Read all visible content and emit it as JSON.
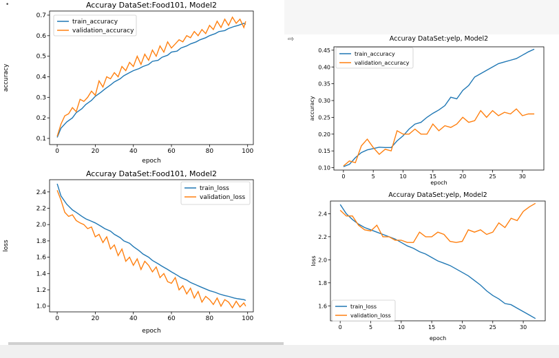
{
  "notebook": {
    "cell_marker": "•",
    "output_icon": "output-arrow-icon",
    "output_icon_glyph": "⇨"
  },
  "chart_data": [
    {
      "type": "line",
      "title": "Accuray DataSet:Food101, Model2",
      "xlabel": "epoch",
      "ylabel": "accuracy",
      "xlim": [
        -4,
        103
      ],
      "ylim": [
        0.07,
        0.72
      ],
      "xticks": [
        0,
        20,
        40,
        60,
        80,
        100
      ],
      "yticks": [
        0.1,
        0.2,
        0.3,
        0.4,
        0.5,
        0.6,
        0.7
      ],
      "ytick_labels": [
        "0.1",
        "0.2",
        "0.3",
        "0.4",
        "0.5",
        "0.6",
        "0.7"
      ],
      "legend_position": "top-left",
      "grid": false,
      "series": [
        {
          "name": "train_accuracy",
          "color": "#1f77b4",
          "x": [
            0,
            2,
            5,
            8,
            10,
            13,
            15,
            18,
            20,
            23,
            25,
            28,
            30,
            33,
            35,
            38,
            40,
            43,
            45,
            48,
            50,
            53,
            55,
            58,
            60,
            63,
            65,
            68,
            70,
            73,
            75,
            78,
            80,
            83,
            85,
            88,
            90,
            93,
            95,
            98,
            99
          ],
          "y": [
            0.105,
            0.15,
            0.18,
            0.2,
            0.225,
            0.245,
            0.265,
            0.285,
            0.305,
            0.325,
            0.34,
            0.36,
            0.375,
            0.39,
            0.405,
            0.42,
            0.43,
            0.44,
            0.45,
            0.46,
            0.475,
            0.48,
            0.495,
            0.505,
            0.52,
            0.525,
            0.54,
            0.55,
            0.56,
            0.57,
            0.58,
            0.59,
            0.6,
            0.61,
            0.62,
            0.625,
            0.635,
            0.645,
            0.65,
            0.66,
            0.655
          ]
        },
        {
          "name": "validation_accuracy",
          "color": "#ff7f0e",
          "x": [
            0,
            2,
            4,
            6,
            8,
            10,
            12,
            14,
            16,
            18,
            20,
            22,
            24,
            26,
            28,
            30,
            32,
            34,
            36,
            38,
            40,
            42,
            44,
            46,
            48,
            50,
            52,
            54,
            56,
            58,
            60,
            62,
            64,
            66,
            68,
            70,
            72,
            74,
            76,
            78,
            80,
            82,
            84,
            86,
            88,
            90,
            92,
            94,
            96,
            98,
            99
          ],
          "y": [
            0.11,
            0.17,
            0.21,
            0.22,
            0.25,
            0.23,
            0.29,
            0.28,
            0.3,
            0.33,
            0.31,
            0.38,
            0.35,
            0.4,
            0.39,
            0.42,
            0.4,
            0.45,
            0.43,
            0.47,
            0.45,
            0.5,
            0.46,
            0.51,
            0.48,
            0.53,
            0.5,
            0.55,
            0.52,
            0.57,
            0.54,
            0.56,
            0.58,
            0.57,
            0.6,
            0.59,
            0.62,
            0.6,
            0.63,
            0.61,
            0.65,
            0.63,
            0.67,
            0.64,
            0.68,
            0.65,
            0.69,
            0.66,
            0.68,
            0.64,
            0.67
          ]
        }
      ]
    },
    {
      "type": "line",
      "title": "Accuray DataSet:Food101, Model2",
      "xlabel": "epoch",
      "ylabel": "loss",
      "xlim": [
        -4,
        103
      ],
      "ylim": [
        0.93,
        2.55
      ],
      "xticks": [
        0,
        20,
        40,
        60,
        80,
        100
      ],
      "yticks": [
        1.0,
        1.2,
        1.4,
        1.6,
        1.8,
        2.0,
        2.2,
        2.4
      ],
      "ytick_labels": [
        "1.0",
        "1.2",
        "1.4",
        "1.6",
        "1.8",
        "2.0",
        "2.2",
        "2.4"
      ],
      "legend_position": "top-right",
      "grid": false,
      "series": [
        {
          "name": "train_loss",
          "color": "#1f77b4",
          "x": [
            0,
            2,
            5,
            8,
            10,
            13,
            15,
            18,
            20,
            23,
            25,
            28,
            30,
            33,
            35,
            38,
            40,
            43,
            45,
            48,
            50,
            53,
            55,
            58,
            60,
            63,
            65,
            68,
            70,
            73,
            75,
            78,
            80,
            83,
            85,
            88,
            90,
            93,
            95,
            98,
            99
          ],
          "y": [
            2.5,
            2.35,
            2.25,
            2.18,
            2.15,
            2.1,
            2.07,
            2.04,
            2.02,
            1.98,
            1.95,
            1.92,
            1.88,
            1.84,
            1.8,
            1.77,
            1.73,
            1.68,
            1.64,
            1.6,
            1.56,
            1.52,
            1.49,
            1.45,
            1.42,
            1.38,
            1.35,
            1.32,
            1.29,
            1.26,
            1.24,
            1.21,
            1.19,
            1.17,
            1.15,
            1.13,
            1.12,
            1.1,
            1.09,
            1.08,
            1.07
          ]
        },
        {
          "name": "validation_loss",
          "color": "#ff7f0e",
          "x": [
            0,
            2,
            4,
            6,
            8,
            10,
            12,
            14,
            16,
            18,
            20,
            22,
            24,
            26,
            28,
            30,
            32,
            34,
            36,
            38,
            40,
            42,
            44,
            46,
            48,
            50,
            52,
            54,
            56,
            58,
            60,
            62,
            64,
            66,
            68,
            70,
            72,
            74,
            76,
            78,
            80,
            82,
            84,
            86,
            88,
            90,
            92,
            94,
            96,
            98,
            99
          ],
          "y": [
            2.42,
            2.3,
            2.15,
            2.1,
            2.12,
            2.05,
            2.02,
            2.0,
            1.95,
            1.97,
            1.85,
            1.88,
            1.78,
            1.85,
            1.7,
            1.75,
            1.62,
            1.7,
            1.55,
            1.6,
            1.5,
            1.58,
            1.45,
            1.55,
            1.5,
            1.42,
            1.48,
            1.35,
            1.4,
            1.3,
            1.28,
            1.35,
            1.2,
            1.25,
            1.15,
            1.22,
            1.1,
            1.18,
            1.05,
            1.12,
            1.08,
            1.02,
            1.1,
            1.0,
            1.08,
            1.05,
            0.98,
            1.06,
            0.99,
            1.04,
            1.0
          ]
        }
      ]
    },
    {
      "type": "line",
      "title": "Accuray DataSet:yelp, Model2",
      "xlabel": "epoch",
      "ylabel": "accuracy",
      "xlim": [
        -1.6,
        33.6
      ],
      "ylim": [
        0.093,
        0.46
      ],
      "xticks": [
        0,
        5,
        10,
        15,
        20,
        25,
        30
      ],
      "yticks": [
        0.1,
        0.15,
        0.2,
        0.25,
        0.3,
        0.35,
        0.4,
        0.45
      ],
      "ytick_labels": [
        "0.10",
        "0.15",
        "0.20",
        "0.25",
        "0.30",
        "0.35",
        "0.40",
        "0.45"
      ],
      "legend_position": "top-left",
      "grid": false,
      "series": [
        {
          "name": "train_accuracy",
          "color": "#1f77b4",
          "x": [
            0,
            1,
            2,
            3,
            4,
            5,
            6,
            7,
            8,
            9,
            10,
            11,
            12,
            13,
            14,
            15,
            16,
            17,
            18,
            19,
            20,
            21,
            22,
            23,
            24,
            25,
            26,
            27,
            28,
            29,
            30,
            31,
            32
          ],
          "y": [
            0.103,
            0.11,
            0.13,
            0.145,
            0.153,
            0.157,
            0.161,
            0.16,
            0.16,
            0.18,
            0.195,
            0.215,
            0.23,
            0.235,
            0.25,
            0.262,
            0.272,
            0.285,
            0.31,
            0.305,
            0.33,
            0.345,
            0.37,
            0.38,
            0.39,
            0.4,
            0.41,
            0.415,
            0.42,
            0.425,
            0.435,
            0.445,
            0.453
          ]
        },
        {
          "name": "validation_accuracy",
          "color": "#ff7f0e",
          "x": [
            0,
            1,
            2,
            3,
            4,
            5,
            6,
            7,
            8,
            9,
            10,
            11,
            12,
            13,
            14,
            15,
            16,
            17,
            18,
            19,
            20,
            21,
            22,
            23,
            24,
            25,
            26,
            27,
            28,
            29,
            30,
            31,
            32
          ],
          "y": [
            0.105,
            0.12,
            0.115,
            0.165,
            0.185,
            0.16,
            0.14,
            0.155,
            0.15,
            0.21,
            0.2,
            0.2,
            0.215,
            0.2,
            0.2,
            0.23,
            0.21,
            0.225,
            0.22,
            0.23,
            0.25,
            0.235,
            0.24,
            0.27,
            0.25,
            0.27,
            0.255,
            0.265,
            0.26,
            0.275,
            0.255,
            0.26,
            0.26
          ]
        }
      ]
    },
    {
      "type": "line",
      "title": "Accuray DataSet:yelp, Model2",
      "xlabel": "epoch",
      "ylabel": "loss",
      "xlim": [
        -1.6,
        33.6
      ],
      "ylim": [
        1.47,
        2.51
      ],
      "xticks": [
        0,
        5,
        10,
        15,
        20,
        25,
        30
      ],
      "yticks": [
        1.6,
        1.8,
        2.0,
        2.2,
        2.4
      ],
      "ytick_labels": [
        "1.6",
        "1.8",
        "2.0",
        "2.2",
        "2.4"
      ],
      "legend_position": "bottom-left",
      "grid": false,
      "series": [
        {
          "name": "train_loss",
          "color": "#1f77b4",
          "x": [
            0,
            1,
            2,
            3,
            4,
            5,
            6,
            7,
            8,
            9,
            10,
            11,
            12,
            13,
            14,
            15,
            16,
            17,
            18,
            19,
            20,
            21,
            22,
            23,
            24,
            25,
            26,
            27,
            28,
            29,
            30,
            31,
            32
          ],
          "y": [
            2.48,
            2.4,
            2.35,
            2.31,
            2.28,
            2.26,
            2.24,
            2.22,
            2.2,
            2.18,
            2.15,
            2.12,
            2.1,
            2.07,
            2.05,
            2.02,
            1.99,
            1.97,
            1.95,
            1.92,
            1.89,
            1.86,
            1.82,
            1.78,
            1.73,
            1.69,
            1.66,
            1.62,
            1.61,
            1.58,
            1.55,
            1.52,
            1.49
          ]
        },
        {
          "name": "validation_loss",
          "color": "#ff7f0e",
          "x": [
            0,
            1,
            2,
            3,
            4,
            5,
            6,
            7,
            8,
            9,
            10,
            11,
            12,
            13,
            14,
            15,
            16,
            17,
            18,
            19,
            20,
            21,
            22,
            23,
            24,
            25,
            26,
            27,
            28,
            29,
            30,
            31,
            32
          ],
          "y": [
            2.43,
            2.38,
            2.38,
            2.3,
            2.26,
            2.25,
            2.3,
            2.2,
            2.2,
            2.17,
            2.17,
            2.15,
            2.15,
            2.24,
            2.2,
            2.2,
            2.24,
            2.22,
            2.16,
            2.15,
            2.16,
            2.26,
            2.24,
            2.26,
            2.22,
            2.24,
            2.32,
            2.28,
            2.36,
            2.34,
            2.42,
            2.46,
            2.49
          ]
        }
      ]
    }
  ]
}
